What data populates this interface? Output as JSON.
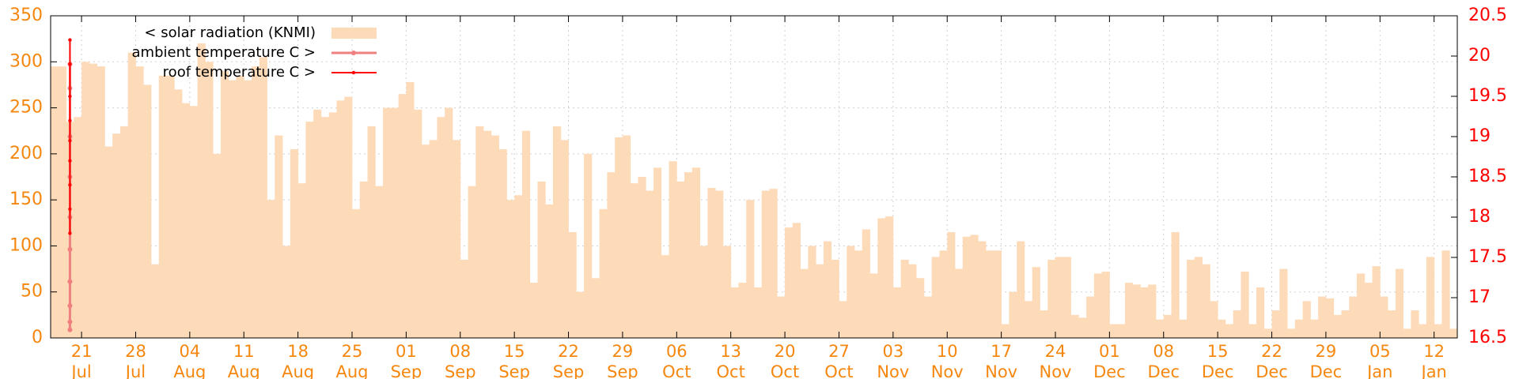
{
  "chart_data": {
    "type": "bar",
    "ylim": [
      0,
      350
    ],
    "yticks": [
      0,
      50,
      100,
      150,
      200,
      250,
      300,
      350
    ],
    "y2lim": [
      16.5,
      20.5
    ],
    "y2ticks": [
      16.5,
      17,
      17.5,
      18,
      18.5,
      19,
      19.5,
      20,
      20.5
    ],
    "xlim": [
      "17 Jul",
      "15 Jan"
    ],
    "xticks": [
      {
        "value": "21 Jul",
        "label": [
          "21",
          "Jul"
        ]
      },
      {
        "value": "28 Jul",
        "label": [
          "28",
          "Jul"
        ]
      },
      {
        "value": "4 Aug",
        "label": [
          "04",
          "Aug"
        ]
      },
      {
        "value": "11 Aug",
        "label": [
          "11",
          "Aug"
        ]
      },
      {
        "value": "18 Aug",
        "label": [
          "18",
          "Aug"
        ]
      },
      {
        "value": "25 Aug",
        "label": [
          "25",
          "Aug"
        ]
      },
      {
        "value": "1 Sep",
        "label": [
          "01",
          "Sep"
        ]
      },
      {
        "value": "8 Sep",
        "label": [
          "08",
          "Sep"
        ]
      },
      {
        "value": "15 Sep",
        "label": [
          "15",
          "Sep"
        ]
      },
      {
        "value": "22 Sep",
        "label": [
          "22",
          "Sep"
        ]
      },
      {
        "value": "29 Sep",
        "label": [
          "29",
          "Sep"
        ]
      },
      {
        "value": "6 Oct",
        "label": [
          "06",
          "Oct"
        ]
      },
      {
        "value": "13 Oct",
        "label": [
          "13",
          "Oct"
        ]
      },
      {
        "value": "20 Oct",
        "label": [
          "20",
          "Oct"
        ]
      },
      {
        "value": "27 Oct",
        "label": [
          "27",
          "Oct"
        ]
      },
      {
        "value": "3 Nov",
        "label": [
          "03",
          "Nov"
        ]
      },
      {
        "value": "10 Nov",
        "label": [
          "10",
          "Nov"
        ]
      },
      {
        "value": "17 Nov",
        "label": [
          "17",
          "Nov"
        ]
      },
      {
        "value": "24 Nov",
        "label": [
          "24",
          "Nov"
        ]
      },
      {
        "value": "1 Dec",
        "label": [
          "01",
          "Dec"
        ]
      },
      {
        "value": "8 Dec",
        "label": [
          "08",
          "Dec"
        ]
      },
      {
        "value": "15 Dec",
        "label": [
          "15",
          "Dec"
        ]
      },
      {
        "value": "22 Dec",
        "label": [
          "22",
          "Dec"
        ]
      },
      {
        "value": "29 Dec",
        "label": [
          "29",
          "Dec"
        ]
      },
      {
        "value": "5 Jan",
        "label": [
          "05",
          "Jan"
        ]
      },
      {
        "value": "12 Jan",
        "label": [
          "12",
          "Jan"
        ]
      }
    ],
    "grid": true,
    "legend": "top-left",
    "series": [
      {
        "name": "< solar radiation (KNMI)",
        "type": "bar",
        "color": "#fedbb8",
        "x": [
          "17 Jul",
          "18 Jul",
          "19 Jul",
          "20 Jul",
          "21 Jul",
          "22 Jul",
          "23 Jul",
          "24 Jul",
          "25 Jul",
          "26 Jul",
          "27 Jul",
          "28 Jul",
          "29 Jul",
          "30 Jul",
          "31 Jul",
          "1 Aug",
          "2 Aug",
          "3 Aug",
          "4 Aug",
          "5 Aug",
          "6 Aug",
          "7 Aug",
          "8 Aug",
          "9 Aug",
          "10 Aug",
          "11 Aug",
          "12 Aug",
          "13 Aug",
          "14 Aug",
          "15 Aug",
          "16 Aug",
          "17 Aug",
          "18 Aug",
          "19 Aug",
          "20 Aug",
          "21 Aug",
          "22 Aug",
          "23 Aug",
          "24 Aug",
          "25 Aug",
          "26 Aug",
          "27 Aug",
          "28 Aug",
          "29 Aug",
          "30 Aug",
          "31 Aug",
          "1 Sep",
          "2 Sep",
          "3 Sep",
          "4 Sep",
          "5 Sep",
          "6 Sep",
          "7 Sep",
          "8 Sep",
          "9 Sep",
          "10 Sep",
          "11 Sep",
          "12 Sep",
          "13 Sep",
          "14 Sep",
          "15 Sep",
          "16 Sep",
          "17 Sep",
          "18 Sep",
          "19 Sep",
          "20 Sep",
          "21 Sep",
          "22 Sep",
          "23 Sep",
          "24 Sep",
          "25 Sep",
          "26 Sep",
          "27 Sep",
          "28 Sep",
          "29 Sep",
          "30 Sep",
          "1 Oct",
          "2 Oct",
          "3 Oct",
          "4 Oct",
          "5 Oct",
          "6 Oct",
          "7 Oct",
          "8 Oct",
          "9 Oct",
          "10 Oct",
          "11 Oct",
          "12 Oct",
          "13 Oct",
          "14 Oct",
          "15 Oct",
          "16 Oct",
          "17 Oct",
          "18 Oct",
          "19 Oct",
          "20 Oct",
          "21 Oct",
          "22 Oct",
          "23 Oct",
          "24 Oct",
          "25 Oct",
          "26 Oct",
          "27 Oct",
          "28 Oct",
          "29 Oct",
          "30 Oct",
          "31 Oct",
          "1 Nov",
          "2 Nov",
          "3 Nov",
          "4 Nov",
          "5 Nov",
          "6 Nov",
          "7 Nov",
          "8 Nov",
          "9 Nov",
          "10 Nov",
          "11 Nov",
          "12 Nov",
          "13 Nov",
          "14 Nov",
          "15 Nov",
          "16 Nov",
          "17 Nov",
          "18 Nov",
          "19 Nov",
          "20 Nov",
          "21 Nov",
          "22 Nov",
          "23 Nov",
          "24 Nov",
          "25 Nov",
          "26 Nov",
          "27 Nov",
          "28 Nov",
          "29 Nov",
          "30 Nov",
          "1 Dec",
          "2 Dec",
          "3 Dec",
          "4 Dec",
          "5 Dec",
          "6 Dec",
          "7 Dec",
          "8 Dec",
          "9 Dec",
          "10 Dec",
          "11 Dec",
          "12 Dec",
          "13 Dec",
          "14 Dec",
          "15 Dec",
          "16 Dec",
          "17 Dec",
          "18 Dec",
          "19 Dec",
          "20 Dec",
          "21 Dec",
          "22 Dec",
          "23 Dec",
          "24 Dec",
          "25 Dec",
          "26 Dec",
          "27 Dec",
          "28 Dec",
          "29 Dec",
          "30 Dec",
          "31 Dec",
          "1 Jan",
          "2 Jan",
          "3 Jan",
          "4 Jan",
          "5 Jan",
          "6 Jan",
          "7 Jan",
          "8 Jan",
          "9 Jan",
          "10 Jan",
          "11 Jan",
          "12 Jan",
          "13 Jan",
          "14 Jan"
        ],
        "values": [
          295,
          295,
          235,
          240,
          300,
          298,
          295,
          208,
          222,
          230,
          310,
          295,
          275,
          80,
          285,
          285,
          270,
          255,
          252,
          320,
          300,
          200,
          290,
          280,
          285,
          280,
          295,
          305,
          150,
          220,
          100,
          205,
          168,
          235,
          248,
          240,
          245,
          258,
          262,
          140,
          170,
          230,
          165,
          250,
          250,
          265,
          278,
          248,
          210,
          215,
          240,
          250,
          215,
          85,
          165,
          230,
          225,
          220,
          205,
          150,
          155,
          225,
          60,
          170,
          145,
          230,
          215,
          115,
          50,
          200,
          65,
          140,
          180,
          218,
          220,
          168,
          175,
          160,
          185,
          90,
          192,
          170,
          180,
          185,
          100,
          163,
          160,
          100,
          55,
          60,
          150,
          55,
          160,
          162,
          45,
          120,
          125,
          75,
          100,
          80,
          105,
          85,
          40,
          100,
          95,
          118,
          70,
          130,
          132,
          55,
          85,
          80,
          65,
          45,
          88,
          95,
          115,
          75,
          110,
          112,
          105,
          95,
          95,
          15,
          50,
          105,
          40,
          77,
          30,
          85,
          88,
          88,
          25,
          22,
          45,
          70,
          72,
          15,
          15,
          60,
          58,
          55,
          58,
          20,
          25,
          115,
          20,
          85,
          88,
          80,
          40,
          20,
          15,
          30,
          72,
          15,
          55,
          10,
          30,
          75,
          10,
          20,
          40,
          20,
          45,
          43,
          25,
          30,
          45,
          70,
          60,
          78,
          45,
          30,
          75,
          10,
          30,
          15,
          88,
          15,
          95,
          10
        ]
      },
      {
        "name": "ambient temperature C >",
        "type": "line",
        "axis": "y2",
        "color": "#f08080",
        "x": [
          "19 Jul",
          "19 Jul",
          "19 Jul",
          "19 Jul",
          "19 Jul",
          "19 Jul",
          "19 Jul",
          "19 Jul",
          "19 Jul",
          "19 Jul"
        ],
        "values": [
          19.9,
          19.6,
          19.0,
          18.5,
          18.0,
          17.6,
          17.2,
          16.9,
          16.7,
          16.6
        ]
      },
      {
        "name": "roof temperature C >",
        "type": "line",
        "axis": "y2",
        "color": "#ff0000",
        "x": [
          "19 Jul",
          "19 Jul",
          "19 Jul",
          "19 Jul",
          "19 Jul",
          "19 Jul",
          "19 Jul",
          "19 Jul",
          "19 Jul"
        ],
        "values": [
          20.2,
          19.9,
          19.5,
          19.2,
          18.95,
          18.7,
          18.4,
          18.1,
          17.8
        ]
      }
    ]
  }
}
